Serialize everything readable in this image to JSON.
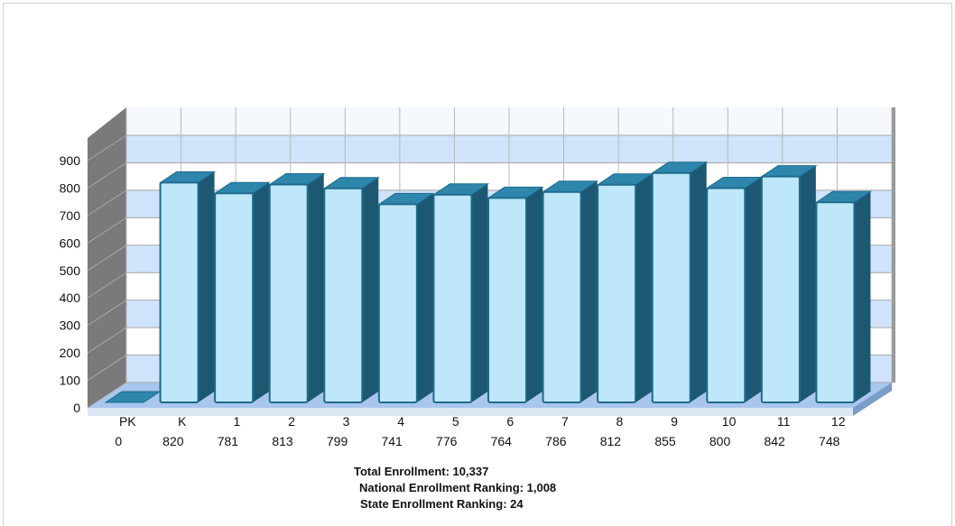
{
  "chart_data": {
    "type": "bar",
    "categories": [
      "PK",
      "K",
      "1",
      "2",
      "3",
      "4",
      "5",
      "6",
      "7",
      "8",
      "9",
      "10",
      "11",
      "12"
    ],
    "values": [
      0,
      820,
      781,
      813,
      799,
      741,
      776,
      764,
      786,
      812,
      855,
      800,
      842,
      748
    ],
    "value_labels": [
      "0",
      "820",
      "781",
      "813",
      "799",
      "741",
      "776",
      "764",
      "786",
      "812",
      "855",
      "800",
      "842",
      "748"
    ],
    "y_ticks": [
      0,
      100,
      200,
      300,
      400,
      500,
      600,
      700,
      800,
      900
    ],
    "ylim": [
      0,
      900
    ],
    "style": "3d",
    "grid": true
  },
  "summary": {
    "total": "Total Enrollment: 10,337",
    "national": "National Enrollment Ranking: 1,008",
    "state": "State Enrollment Ranking: 24"
  },
  "colors": {
    "bar_front": "#bfe7fa",
    "bar_side": "#1d5873",
    "bar_top": "#2e86ad",
    "bar_edge": "#1f6b8c",
    "band_blue": "#cfe3fa",
    "band_white": "#ffffff",
    "left_wall": "#7a7a7a",
    "floor": "#a9c6ee",
    "grid": "#a7a7a7"
  }
}
